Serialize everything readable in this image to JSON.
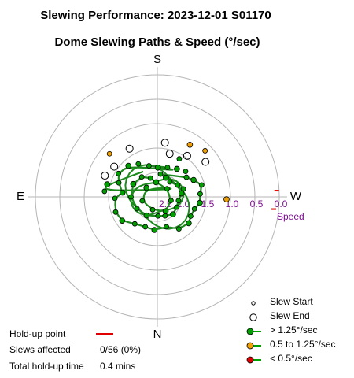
{
  "title": "Slewing Performance: 2023-12-01 S01170",
  "subtitle": "Dome Slewing Paths & Speed (°/sec)",
  "chart_data": {
    "type": "scatter",
    "projection": "polar",
    "radial_axis": {
      "label": "Speed",
      "ticks": [
        2.5,
        2.0,
        1.5,
        1.0,
        0.5,
        0.0
      ],
      "tick_labels": [
        "2.5",
        "2.0",
        "1.5",
        "1.0",
        "0.5",
        "0.0"
      ],
      "direction": "decreasing outward"
    },
    "cardinals": {
      "top": "S",
      "left": "E",
      "right": "W",
      "bottom": "N"
    },
    "grid": true,
    "colors": {
      "fast": "#00a000",
      "medium": "#f0a000",
      "slow": "#e00000",
      "path": "#1c8a1c",
      "holdup": "#e00000",
      "speed_label": "#7b0f8e"
    },
    "series": [
      {
        "name": "> 1.25°/sec",
        "color": "#00a000",
        "points": [
          {
            "az": 181,
            "speed": 1.9
          },
          {
            "az": 199,
            "speed": 1.86
          },
          {
            "az": 165,
            "speed": 1.84
          },
          {
            "az": 215,
            "speed": 1.8
          },
          {
            "az": 150,
            "speed": 1.72
          },
          {
            "az": 228,
            "speed": 1.72
          },
          {
            "az": 137,
            "speed": 1.63
          },
          {
            "az": 121,
            "speed": 1.57
          },
          {
            "az": 110,
            "speed": 1.66
          },
          {
            "az": 97,
            "speed": 1.78
          },
          {
            "az": 88,
            "speed": 1.63
          },
          {
            "az": 70,
            "speed": 1.59
          },
          {
            "az": 56,
            "speed": 1.63
          },
          {
            "az": 40,
            "speed": 1.78
          },
          {
            "az": 22,
            "speed": 1.84
          },
          {
            "az": 5,
            "speed": 1.82
          },
          {
            "az": 343,
            "speed": 1.86
          },
          {
            "az": 326,
            "speed": 1.71
          },
          {
            "az": 310,
            "speed": 1.66
          },
          {
            "az": 300,
            "speed": 1.71
          },
          {
            "az": 288,
            "speed": 1.7
          },
          {
            "az": 278,
            "speed": 1.62
          },
          {
            "az": 266,
            "speed": 1.62
          },
          {
            "az": 255,
            "speed": 1.56
          },
          {
            "az": 245,
            "speed": 1.68
          },
          {
            "az": 236,
            "speed": 1.78
          },
          {
            "az": 188,
            "speed": 2.03
          },
          {
            "az": 204,
            "speed": 2.07
          },
          {
            "az": 220,
            "speed": 2.1
          },
          {
            "az": 240,
            "speed": 2.02
          },
          {
            "az": 262,
            "speed": 2.0
          },
          {
            "az": 280,
            "speed": 2.06
          },
          {
            "az": 298,
            "speed": 2.05
          },
          {
            "az": 318,
            "speed": 2.02
          },
          {
            "az": 338,
            "speed": 2.08
          },
          {
            "az": 358,
            "speed": 2.11
          },
          {
            "az": 30,
            "speed": 2.06
          },
          {
            "az": 60,
            "speed": 2.02
          },
          {
            "az": 90,
            "speed": 1.96
          },
          {
            "az": 118,
            "speed": 1.94
          },
          {
            "az": 142,
            "speed": 1.98
          },
          {
            "az": 160,
            "speed": 2.09
          },
          {
            "az": 175,
            "speed": 2.2
          },
          {
            "az": 230,
            "speed": 2.24
          },
          {
            "az": 285,
            "speed": 2.21
          },
          {
            "az": 330,
            "speed": 2.16
          },
          {
            "az": 20,
            "speed": 2.22
          },
          {
            "az": 75,
            "speed": 2.18
          },
          {
            "az": 130,
            "speed": 2.21
          },
          {
            "az": 253,
            "speed": 1.94
          },
          {
            "az": 96,
            "speed": 1.41
          },
          {
            "az": 104,
            "speed": 1.44
          },
          {
            "az": 210,
            "speed": 1.6
          }
        ]
      },
      {
        "name": "0.5 to 1.25°/sec",
        "color": "#f0a000",
        "points": [
          {
            "az": 212,
            "speed": 1.24
          },
          {
            "az": 226,
            "speed": 1.14
          },
          {
            "az": 132,
            "speed": 1.18
          },
          {
            "az": 272,
            "speed": 1.08
          }
        ]
      },
      {
        "name": "< 0.5°/sec",
        "color": "#e00000",
        "points": []
      }
    ],
    "slew_ends": [
      {
        "az": 188,
        "speed": 1.38
      },
      {
        "az": 196,
        "speed": 1.58
      },
      {
        "az": 216,
        "speed": 1.46
      },
      {
        "az": 234,
        "speed": 1.28
      },
      {
        "az": 125,
        "speed": 1.42
      },
      {
        "az": 112,
        "speed": 1.34
      },
      {
        "az": 150,
        "speed": 1.36
      }
    ],
    "holdup_points": [
      {
        "az": 276,
        "speed": 0.1
      },
      {
        "az": 267,
        "speed": 0.05
      }
    ],
    "legend": {
      "placement": "bottom-right",
      "items": [
        "Slew Start",
        "Slew End",
        "> 1.25°/sec",
        "0.5 to 1.25°/sec",
        "< 0.5°/sec"
      ]
    }
  },
  "stats": {
    "holdup_label": "Hold-up point",
    "slews_affected_label": "Slews affected",
    "slews_affected_value": "0/56 (0%)",
    "holdup_time_label": "Total hold-up time",
    "holdup_time_value": "0.4 mins"
  }
}
